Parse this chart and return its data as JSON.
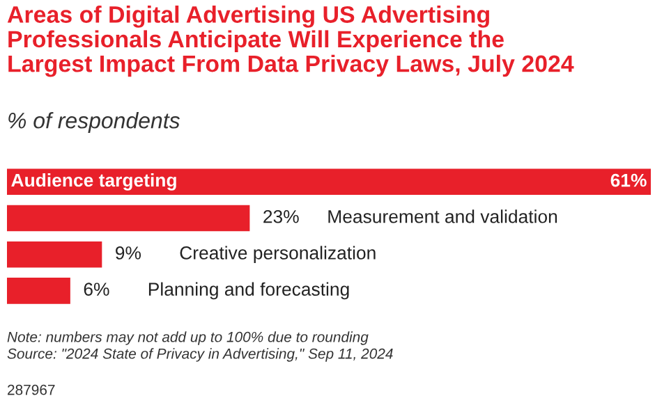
{
  "chart_data": {
    "type": "bar",
    "orientation": "horizontal",
    "title": "Areas of Digital Advertising US Advertising\nProfessionals Anticipate Will Experience the\nLargest Impact From Data Privacy Laws, July 2024",
    "subtitle": "% of respondents",
    "categories": [
      "Audience targeting",
      "Measurement and validation",
      "Creative personalization",
      "Planning and forecasting"
    ],
    "values": [
      61,
      23,
      9,
      6
    ],
    "value_labels": [
      "61%",
      "23%",
      "9%",
      "6%"
    ],
    "color": "#e8202a",
    "annotations": [
      "Note: numbers may not add up to 100% due to rounding",
      "Source: \"2024 State of Privacy in Advertising,\" Sep 11, 2024",
      "287967"
    ],
    "legend": false
  }
}
